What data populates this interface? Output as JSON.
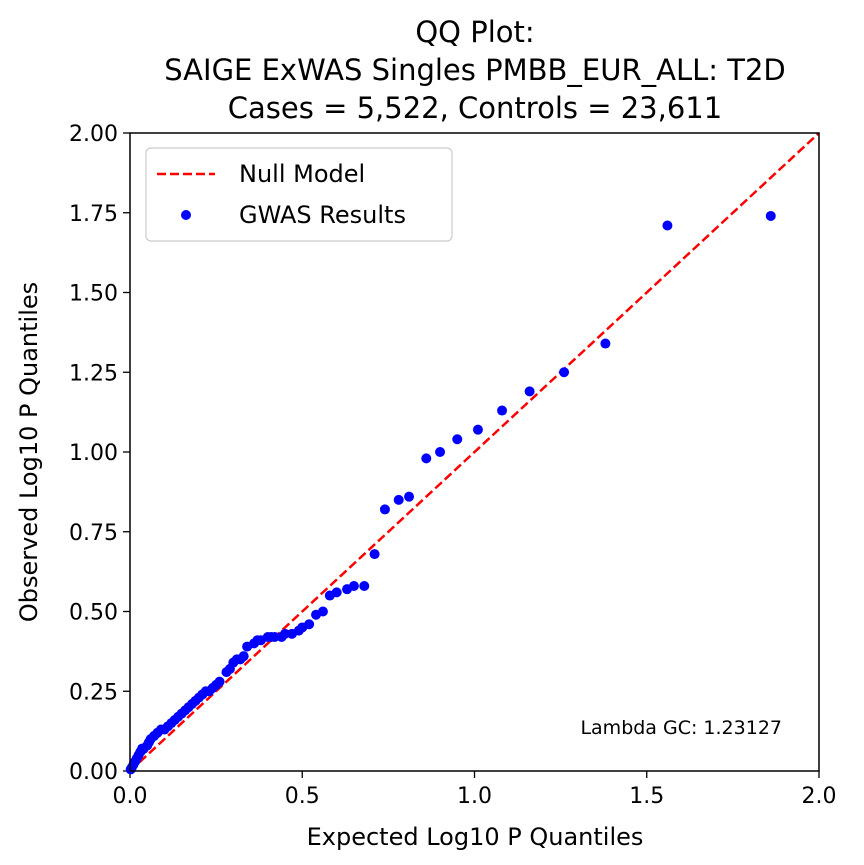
{
  "chart_data": {
    "type": "scatter",
    "title_lines": [
      "QQ Plot:",
      "SAIGE ExWAS Singles PMBB_EUR_ALL: T2D",
      "Cases = 5,522, Controls = 23,611"
    ],
    "xlabel": "Expected Log10 P Quantiles",
    "ylabel": "Observed Log10 P Quantiles",
    "xlim": [
      0.0,
      2.0
    ],
    "ylim": [
      0.0,
      2.0
    ],
    "x_ticks": [
      0.0,
      0.5,
      1.0,
      1.5,
      2.0
    ],
    "x_tick_labels": [
      "0.0",
      "0.5",
      "1.0",
      "1.5",
      "2.0"
    ],
    "y_ticks": [
      0.0,
      0.25,
      0.5,
      0.75,
      1.0,
      1.25,
      1.5,
      1.75,
      2.0
    ],
    "y_tick_labels": [
      "0.00",
      "0.25",
      "0.50",
      "0.75",
      "1.00",
      "1.25",
      "1.50",
      "1.75",
      "2.00"
    ],
    "grid": false,
    "legend_position": "top-left",
    "annotation": "Lambda GC: 1.23127",
    "series": [
      {
        "name": "Null Model",
        "kind": "dashed-line",
        "color": "#ff0000",
        "x": [
          0.0,
          2.0
        ],
        "y": [
          0.0,
          2.0
        ]
      },
      {
        "name": "GWAS Results",
        "kind": "points",
        "color": "#0000ff",
        "points": [
          [
            1.86,
            1.74
          ],
          [
            1.56,
            1.71
          ],
          [
            1.38,
            1.34
          ],
          [
            1.26,
            1.25
          ],
          [
            1.16,
            1.19
          ],
          [
            1.08,
            1.13
          ],
          [
            1.01,
            1.07
          ],
          [
            0.95,
            1.04
          ],
          [
            0.9,
            1.0
          ],
          [
            0.86,
            0.98
          ],
          [
            0.81,
            0.86
          ],
          [
            0.78,
            0.85
          ],
          [
            0.74,
            0.82
          ],
          [
            0.71,
            0.68
          ],
          [
            0.68,
            0.58
          ],
          [
            0.65,
            0.58
          ],
          [
            0.63,
            0.57
          ],
          [
            0.6,
            0.56
          ],
          [
            0.58,
            0.55
          ],
          [
            0.56,
            0.5
          ],
          [
            0.54,
            0.49
          ],
          [
            0.52,
            0.46
          ],
          [
            0.5,
            0.45
          ],
          [
            0.49,
            0.44
          ],
          [
            0.47,
            0.43
          ],
          [
            0.45,
            0.43
          ],
          [
            0.44,
            0.42
          ],
          [
            0.42,
            0.42
          ],
          [
            0.41,
            0.42
          ],
          [
            0.4,
            0.42
          ],
          [
            0.38,
            0.41
          ],
          [
            0.37,
            0.41
          ],
          [
            0.36,
            0.4
          ],
          [
            0.34,
            0.39
          ],
          [
            0.33,
            0.36
          ],
          [
            0.32,
            0.35
          ],
          [
            0.31,
            0.35
          ],
          [
            0.3,
            0.34
          ],
          [
            0.29,
            0.32
          ],
          [
            0.28,
            0.31
          ],
          [
            0.26,
            0.28
          ],
          [
            0.25,
            0.27
          ],
          [
            0.24,
            0.26
          ],
          [
            0.23,
            0.25
          ],
          [
            0.22,
            0.25
          ],
          [
            0.21,
            0.24
          ],
          [
            0.2,
            0.23
          ],
          [
            0.19,
            0.22
          ],
          [
            0.18,
            0.21
          ],
          [
            0.17,
            0.2
          ],
          [
            0.16,
            0.19
          ],
          [
            0.15,
            0.18
          ],
          [
            0.14,
            0.17
          ],
          [
            0.13,
            0.16
          ],
          [
            0.12,
            0.15
          ],
          [
            0.11,
            0.14
          ],
          [
            0.1,
            0.13
          ],
          [
            0.09,
            0.13
          ],
          [
            0.08,
            0.12
          ],
          [
            0.07,
            0.11
          ],
          [
            0.06,
            0.1
          ],
          [
            0.055,
            0.09
          ],
          [
            0.05,
            0.08
          ],
          [
            0.04,
            0.07
          ],
          [
            0.035,
            0.07
          ],
          [
            0.03,
            0.06
          ],
          [
            0.025,
            0.05
          ],
          [
            0.02,
            0.04
          ],
          [
            0.015,
            0.03
          ],
          [
            0.01,
            0.02
          ],
          [
            0.005,
            0.01
          ],
          [
            0.002,
            0.005
          ]
        ]
      }
    ]
  }
}
